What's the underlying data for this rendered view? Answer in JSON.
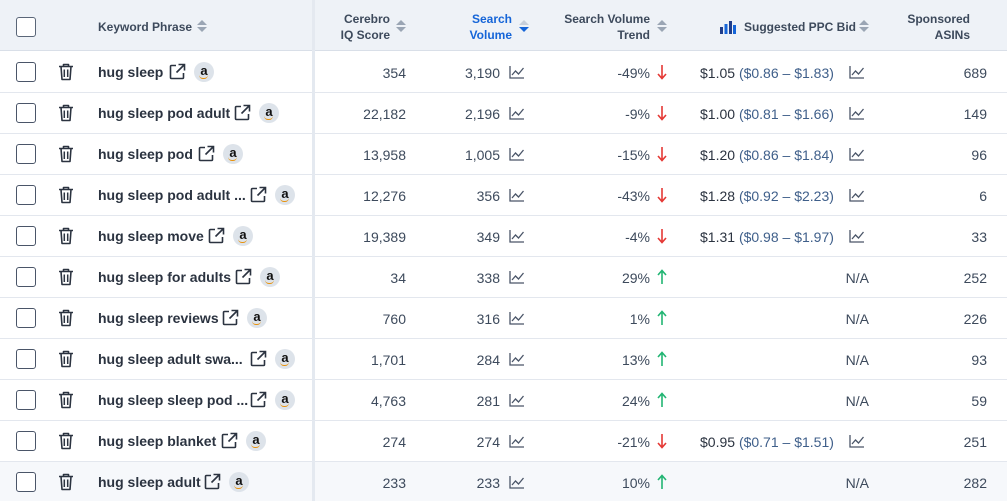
{
  "header": {
    "keyword_phrase": "Keyword Phrase",
    "cerebro_iq_line1": "Cerebro",
    "cerebro_iq_line2": "IQ Score",
    "search_volume_line1": "Search",
    "search_volume_line2": "Volume",
    "trend_line1": "Search Volume",
    "trend_line2": "Trend",
    "ppc": "Suggested PPC Bid",
    "sponsored_line1": "Sponsored",
    "sponsored_line2": "ASINs"
  },
  "colors": {
    "down": "#e53935",
    "up": "#22b573",
    "accent": "#1565d8"
  },
  "rows": [
    {
      "keyword": "hug sleep",
      "iq": "354",
      "volume": "3,190",
      "trend": "-49%",
      "dir": "down",
      "ppc": "$1.05",
      "range": "($0.86 – $1.83)",
      "asins": "689"
    },
    {
      "keyword": "hug sleep pod adult",
      "iq": "22,182",
      "volume": "2,196",
      "trend": "-9%",
      "dir": "down",
      "ppc": "$1.00",
      "range": "($0.81 – $1.66)",
      "asins": "149"
    },
    {
      "keyword": "hug sleep pod",
      "iq": "13,958",
      "volume": "1,005",
      "trend": "-15%",
      "dir": "down",
      "ppc": "$1.20",
      "range": "($0.86 – $1.84)",
      "asins": "96"
    },
    {
      "keyword": "hug sleep pod adult ...",
      "iq": "12,276",
      "volume": "356",
      "trend": "-43%",
      "dir": "down",
      "ppc": "$1.28",
      "range": "($0.92 – $2.23)",
      "asins": "6"
    },
    {
      "keyword": "hug sleep move",
      "iq": "19,389",
      "volume": "349",
      "trend": "-4%",
      "dir": "down",
      "ppc": "$1.31",
      "range": "($0.98 – $1.97)",
      "asins": "33"
    },
    {
      "keyword": "hug sleep for adults",
      "iq": "34",
      "volume": "338",
      "trend": "29%",
      "dir": "up",
      "ppc": "N/A",
      "range": "",
      "asins": "252"
    },
    {
      "keyword": "hug sleep reviews",
      "iq": "760",
      "volume": "316",
      "trend": "1%",
      "dir": "up",
      "ppc": "N/A",
      "range": "",
      "asins": "226"
    },
    {
      "keyword": "hug sleep adult swa...",
      "iq": "1,701",
      "volume": "284",
      "trend": "13%",
      "dir": "up",
      "ppc": "N/A",
      "range": "",
      "asins": "93"
    },
    {
      "keyword": "hug sleep sleep pod ...",
      "iq": "4,763",
      "volume": "281",
      "trend": "24%",
      "dir": "up",
      "ppc": "N/A",
      "range": "",
      "asins": "59"
    },
    {
      "keyword": "hug sleep blanket",
      "iq": "274",
      "volume": "274",
      "trend": "-21%",
      "dir": "down",
      "ppc": "$0.95",
      "range": "($0.71 – $1.51)",
      "asins": "251"
    },
    {
      "keyword": "hug sleep adult",
      "iq": "233",
      "volume": "233",
      "trend": "10%",
      "dir": "up",
      "ppc": "N/A",
      "range": "",
      "asins": "282"
    }
  ]
}
